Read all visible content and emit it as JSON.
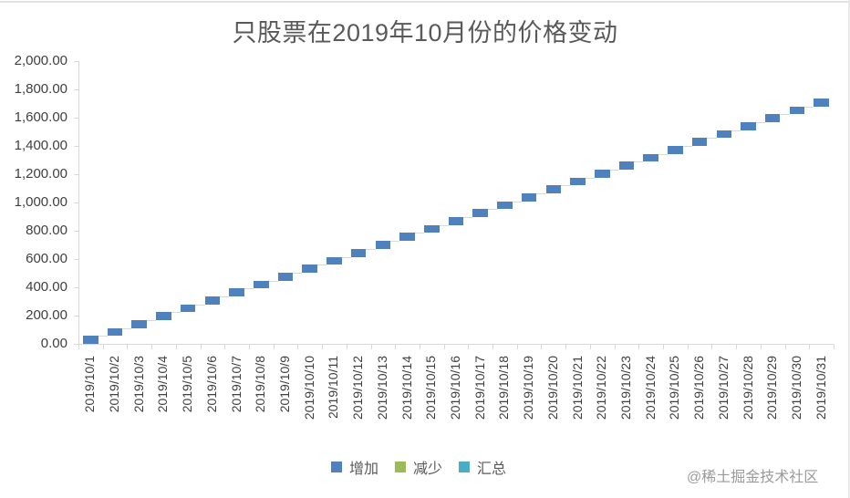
{
  "chart_data": {
    "type": "bar",
    "subtype": "waterfall",
    "title": "只股票在2019年10月份的价格变动",
    "xlabel": "",
    "ylabel": "",
    "ylim": [
      0,
      2000
    ],
    "y_ticks": [
      "0.00",
      "200.00",
      "400.00",
      "600.00",
      "800.00",
      "1,000.00",
      "1,200.00",
      "1,400.00",
      "1,600.00",
      "1,800.00",
      "2,000.00"
    ],
    "grid": false,
    "legend_position": "bottom",
    "legend": [
      {
        "name": "增加",
        "color": "#4f81bd"
      },
      {
        "name": "减少",
        "color": "#9bbb59"
      },
      {
        "name": "汇总",
        "color": "#4bacc6"
      }
    ],
    "categories": [
      "2019/10/1",
      "2019/10/2",
      "2019/10/3",
      "2019/10/4",
      "2019/10/5",
      "2019/10/6",
      "2019/10/7",
      "2019/10/8",
      "2019/10/9",
      "2019/10/10",
      "2019/10/11",
      "2019/10/12",
      "2019/10/13",
      "2019/10/14",
      "2019/10/15",
      "2019/10/16",
      "2019/10/17",
      "2019/10/18",
      "2019/10/19",
      "2019/10/20",
      "2019/10/21",
      "2019/10/22",
      "2019/10/23",
      "2019/10/24",
      "2019/10/25",
      "2019/10/26",
      "2019/10/27",
      "2019/10/28",
      "2019/10/29",
      "2019/10/30",
      "2019/10/31"
    ],
    "series": [
      {
        "name": "增加",
        "color": "#4f81bd",
        "start": [
          0,
          56,
          112,
          168,
          224,
          280,
          336,
          392,
          448,
          504,
          560,
          616,
          672,
          728,
          784,
          840,
          896,
          952,
          1008,
          1064,
          1120,
          1176,
          1232,
          1288,
          1344,
          1400,
          1456,
          1512,
          1568,
          1624,
          1680
        ],
        "end": [
          56,
          112,
          168,
          224,
          280,
          336,
          392,
          448,
          504,
          560,
          616,
          672,
          728,
          784,
          840,
          896,
          952,
          1008,
          1064,
          1120,
          1176,
          1232,
          1288,
          1344,
          1400,
          1456,
          1512,
          1568,
          1624,
          1680,
          1736
        ],
        "values": [
          56,
          56,
          56,
          56,
          56,
          56,
          56,
          56,
          56,
          56,
          56,
          56,
          56,
          56,
          56,
          56,
          56,
          56,
          56,
          56,
          56,
          56,
          56,
          56,
          56,
          56,
          56,
          56,
          56,
          56,
          56
        ]
      },
      {
        "name": "减少",
        "color": "#9bbb59",
        "values": [
          0,
          0,
          0,
          0,
          0,
          0,
          0,
          0,
          0,
          0,
          0,
          0,
          0,
          0,
          0,
          0,
          0,
          0,
          0,
          0,
          0,
          0,
          0,
          0,
          0,
          0,
          0,
          0,
          0,
          0,
          0
        ]
      },
      {
        "name": "汇总",
        "color": "#4bacc6",
        "values": [
          0,
          0,
          0,
          0,
          0,
          0,
          0,
          0,
          0,
          0,
          0,
          0,
          0,
          0,
          0,
          0,
          0,
          0,
          0,
          0,
          0,
          0,
          0,
          0,
          0,
          0,
          0,
          0,
          0,
          0,
          0
        ]
      }
    ]
  },
  "watermark": "@稀土掘金技术社区"
}
